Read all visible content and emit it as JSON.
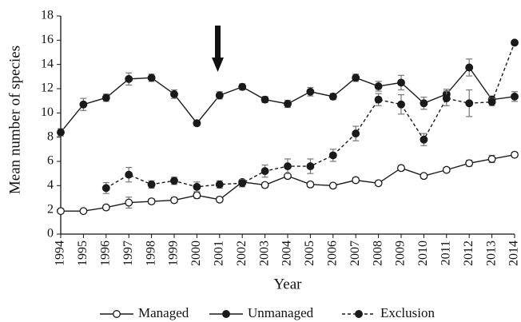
{
  "chart_data": {
    "type": "line",
    "xlabel": "Year",
    "ylabel": "Mean number of species",
    "categories": [
      "1994",
      "1995",
      "1996",
      "1997",
      "1998",
      "1999",
      "2000",
      "2001",
      "2002",
      "2003",
      "2004",
      "2005",
      "2006",
      "2007",
      "2008",
      "2009",
      "2010",
      "2011",
      "2012",
      "2013",
      "2014"
    ],
    "ylim": [
      0,
      18
    ],
    "yticks": [
      0,
      2,
      4,
      6,
      8,
      10,
      12,
      14,
      16,
      18
    ],
    "series": [
      {
        "name": "Managed",
        "color": "#1a1a1a",
        "linestyle": "solid",
        "marker": "open",
        "values": [
          1.9,
          1.9,
          2.2,
          2.6,
          2.7,
          2.8,
          3.2,
          2.85,
          4.3,
          4.05,
          4.8,
          4.1,
          4.0,
          4.45,
          4.2,
          5.45,
          4.8,
          5.3,
          5.85,
          6.2,
          6.55
        ],
        "errors": [
          0.1,
          0.1,
          0.2,
          0.45,
          0.2,
          0.2,
          0.25,
          0.2,
          0.2,
          0.2,
          0.2,
          0.2,
          0.2,
          0.2,
          0.2,
          0.2,
          0.2,
          0.2,
          0.25,
          0.3,
          0.2
        ]
      },
      {
        "name": "Unmanaged",
        "color": "#1a1a1a",
        "linestyle": "solid",
        "marker": "filled",
        "values": [
          8.4,
          10.7,
          11.25,
          12.8,
          12.9,
          11.55,
          9.15,
          11.45,
          12.15,
          11.1,
          10.75,
          11.75,
          11.35,
          12.9,
          12.2,
          12.5,
          10.8,
          11.55,
          13.75,
          11.1,
          11.35
        ],
        "errors": [
          0.3,
          0.5,
          0.3,
          0.5,
          0.3,
          0.35,
          0.2,
          0.3,
          0.25,
          0.25,
          0.3,
          0.35,
          0.25,
          0.3,
          0.4,
          0.6,
          0.5,
          0.4,
          0.7,
          0.3,
          0.4
        ]
      },
      {
        "name": "Exclusion",
        "color": "#1a1a1a",
        "linestyle": "dashed",
        "marker": "filled",
        "values": [
          null,
          null,
          3.8,
          4.9,
          4.1,
          4.4,
          3.9,
          4.1,
          4.2,
          5.2,
          5.6,
          5.6,
          6.5,
          8.3,
          11.1,
          10.7,
          7.8,
          11.2,
          10.8,
          10.9,
          15.8
        ],
        "errors": [
          null,
          null,
          0.45,
          0.6,
          0.3,
          0.3,
          0.4,
          0.3,
          0.3,
          0.5,
          0.6,
          0.6,
          0.5,
          0.6,
          0.5,
          0.8,
          0.5,
          0.6,
          1.1,
          0.3,
          0
        ]
      }
    ]
  }
}
